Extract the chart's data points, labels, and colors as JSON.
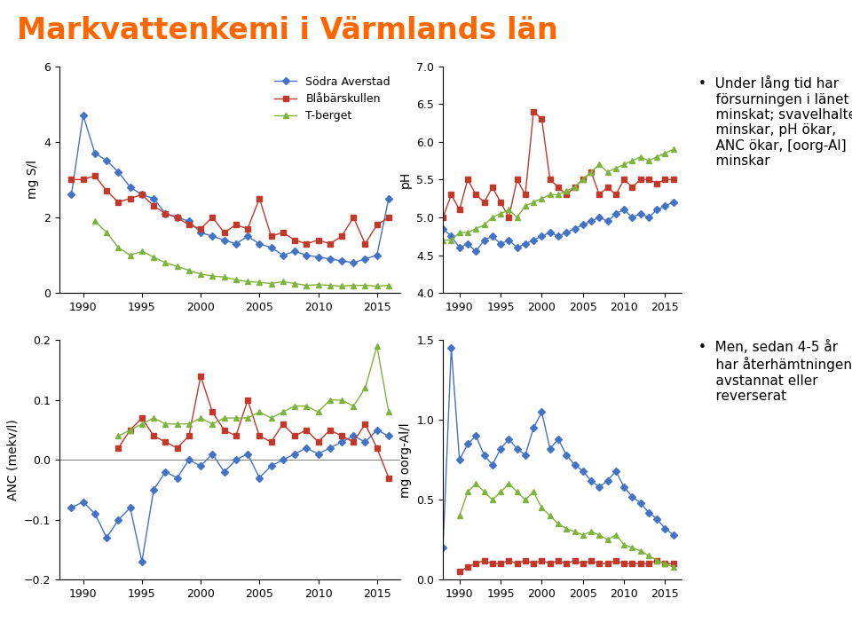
{
  "title": "Markvattenkemi i Värmlands län",
  "title_color": "#FF6600",
  "title_fontsize": 24,
  "colors": [
    "#4472C4",
    "#C0392B",
    "#7EB33E"
  ],
  "legend_labels": [
    "Södra Averstad",
    "Blåbärskullen",
    "T-berget"
  ],
  "years_s": [
    1989,
    1990,
    1991,
    1992,
    1993,
    1994,
    1995,
    1996,
    1997,
    1998,
    1999,
    2000,
    2001,
    2002,
    2003,
    2004,
    2005,
    2006,
    2007,
    2008,
    2009,
    2010,
    2011,
    2012,
    2013,
    2014,
    2015,
    2016
  ],
  "mgS_blue": [
    2.6,
    4.7,
    3.7,
    3.5,
    3.2,
    2.8,
    2.6,
    2.5,
    2.1,
    2.0,
    1.9,
    1.6,
    1.5,
    1.4,
    1.3,
    1.5,
    1.3,
    1.2,
    1.0,
    1.1,
    1.0,
    0.95,
    0.9,
    0.85,
    0.8,
    0.9,
    1.0,
    2.5
  ],
  "mgS_red": [
    3.0,
    3.0,
    3.1,
    2.7,
    2.4,
    2.5,
    2.6,
    2.3,
    2.1,
    2.0,
    1.8,
    1.7,
    2.0,
    1.6,
    1.8,
    1.7,
    2.5,
    1.5,
    1.6,
    1.4,
    1.3,
    1.4,
    1.3,
    1.5,
    2.0,
    1.3,
    1.8,
    2.0
  ],
  "mgS_green": [
    null,
    null,
    1.9,
    1.6,
    1.2,
    1.0,
    1.1,
    0.95,
    0.8,
    0.7,
    0.6,
    0.5,
    0.45,
    0.42,
    0.35,
    0.3,
    0.28,
    0.25,
    0.3,
    0.25,
    0.2,
    0.22,
    0.2,
    0.18,
    0.2,
    0.2,
    0.18,
    0.2
  ],
  "years_ph": [
    1988,
    1989,
    1990,
    1991,
    1992,
    1993,
    1994,
    1995,
    1996,
    1997,
    1998,
    1999,
    2000,
    2001,
    2002,
    2003,
    2004,
    2005,
    2006,
    2007,
    2008,
    2009,
    2010,
    2011,
    2012,
    2013,
    2014,
    2015,
    2016
  ],
  "ph_blue": [
    4.85,
    4.75,
    4.6,
    4.65,
    4.55,
    4.7,
    4.75,
    4.65,
    4.7,
    4.6,
    4.65,
    4.7,
    4.75,
    4.8,
    4.75,
    4.8,
    4.85,
    4.9,
    4.95,
    5.0,
    4.95,
    5.05,
    5.1,
    5.0,
    5.05,
    5.0,
    5.1,
    5.15,
    5.2
  ],
  "ph_red": [
    5.0,
    5.3,
    5.1,
    5.5,
    5.3,
    5.2,
    5.4,
    5.2,
    5.0,
    5.5,
    5.3,
    6.4,
    6.3,
    5.5,
    5.4,
    5.3,
    5.4,
    5.5,
    5.6,
    5.3,
    5.4,
    5.3,
    5.5,
    5.4,
    5.5,
    5.5,
    5.45,
    5.5,
    5.5
  ],
  "ph_green": [
    4.7,
    4.7,
    4.8,
    4.8,
    4.85,
    4.9,
    5.0,
    5.05,
    5.1,
    5.0,
    5.15,
    5.2,
    5.25,
    5.3,
    5.3,
    5.35,
    5.4,
    5.5,
    5.6,
    5.7,
    5.6,
    5.65,
    5.7,
    5.75,
    5.8,
    5.75,
    5.8,
    5.85,
    5.9
  ],
  "years_anc": [
    1989,
    1990,
    1991,
    1992,
    1993,
    1994,
    1995,
    1996,
    1997,
    1998,
    1999,
    2000,
    2001,
    2002,
    2003,
    2004,
    2005,
    2006,
    2007,
    2008,
    2009,
    2010,
    2011,
    2012,
    2013,
    2014,
    2015,
    2016
  ],
  "anc_blue": [
    -0.08,
    -0.07,
    -0.09,
    -0.13,
    -0.1,
    -0.08,
    -0.17,
    -0.05,
    -0.02,
    -0.03,
    0.0,
    -0.01,
    0.01,
    -0.02,
    0.0,
    0.01,
    -0.03,
    -0.01,
    0.0,
    0.01,
    0.02,
    0.01,
    0.02,
    0.03,
    0.04,
    0.03,
    0.05,
    0.04
  ],
  "anc_red": [
    null,
    null,
    null,
    null,
    0.02,
    0.05,
    0.07,
    0.04,
    0.03,
    0.02,
    0.04,
    0.14,
    0.08,
    0.05,
    0.04,
    0.1,
    0.04,
    0.03,
    0.06,
    0.04,
    0.05,
    0.03,
    0.05,
    0.04,
    0.03,
    0.06,
    0.02,
    -0.03
  ],
  "anc_green": [
    null,
    null,
    null,
    null,
    0.04,
    0.05,
    0.06,
    0.07,
    0.06,
    0.06,
    0.06,
    0.07,
    0.06,
    0.07,
    0.07,
    0.07,
    0.08,
    0.07,
    0.08,
    0.09,
    0.09,
    0.08,
    0.1,
    0.1,
    0.09,
    0.12,
    0.19,
    0.08
  ],
  "years_al": [
    1988,
    1989,
    1990,
    1991,
    1992,
    1993,
    1994,
    1995,
    1996,
    1997,
    1998,
    1999,
    2000,
    2001,
    2002,
    2003,
    2004,
    2005,
    2006,
    2007,
    2008,
    2009,
    2010,
    2011,
    2012,
    2013,
    2014,
    2015,
    2016
  ],
  "al_blue": [
    0.2,
    1.45,
    0.75,
    0.85,
    0.9,
    0.78,
    0.72,
    0.82,
    0.88,
    0.82,
    0.78,
    0.95,
    1.05,
    0.82,
    0.88,
    0.78,
    0.72,
    0.68,
    0.62,
    0.58,
    0.62,
    0.68,
    0.58,
    0.52,
    0.48,
    0.42,
    0.38,
    0.32,
    0.28
  ],
  "al_red": [
    null,
    null,
    0.05,
    0.08,
    0.1,
    0.12,
    0.1,
    0.1,
    0.12,
    0.1,
    0.12,
    0.1,
    0.12,
    0.1,
    0.12,
    0.1,
    0.12,
    0.1,
    0.12,
    0.1,
    0.1,
    0.12,
    0.1,
    0.1,
    0.1,
    0.1,
    0.12,
    0.1,
    0.1
  ],
  "al_green": [
    null,
    null,
    0.4,
    0.55,
    0.6,
    0.55,
    0.5,
    0.55,
    0.6,
    0.55,
    0.5,
    0.55,
    0.45,
    0.4,
    0.35,
    0.32,
    0.3,
    0.28,
    0.3,
    0.28,
    0.25,
    0.28,
    0.22,
    0.2,
    0.18,
    0.15,
    0.12,
    0.1,
    0.08
  ],
  "bullet1": "Under lång tid har\nförsurningen i länet\nminskat; svavelhalter\nminskar, pH ökar,\nANC ökar, [oorg-Al]\nminskar",
  "bullet2": "Men, sedan 4-5 år\nhar återfhämtningen\navstannat eller\nreverserat"
}
